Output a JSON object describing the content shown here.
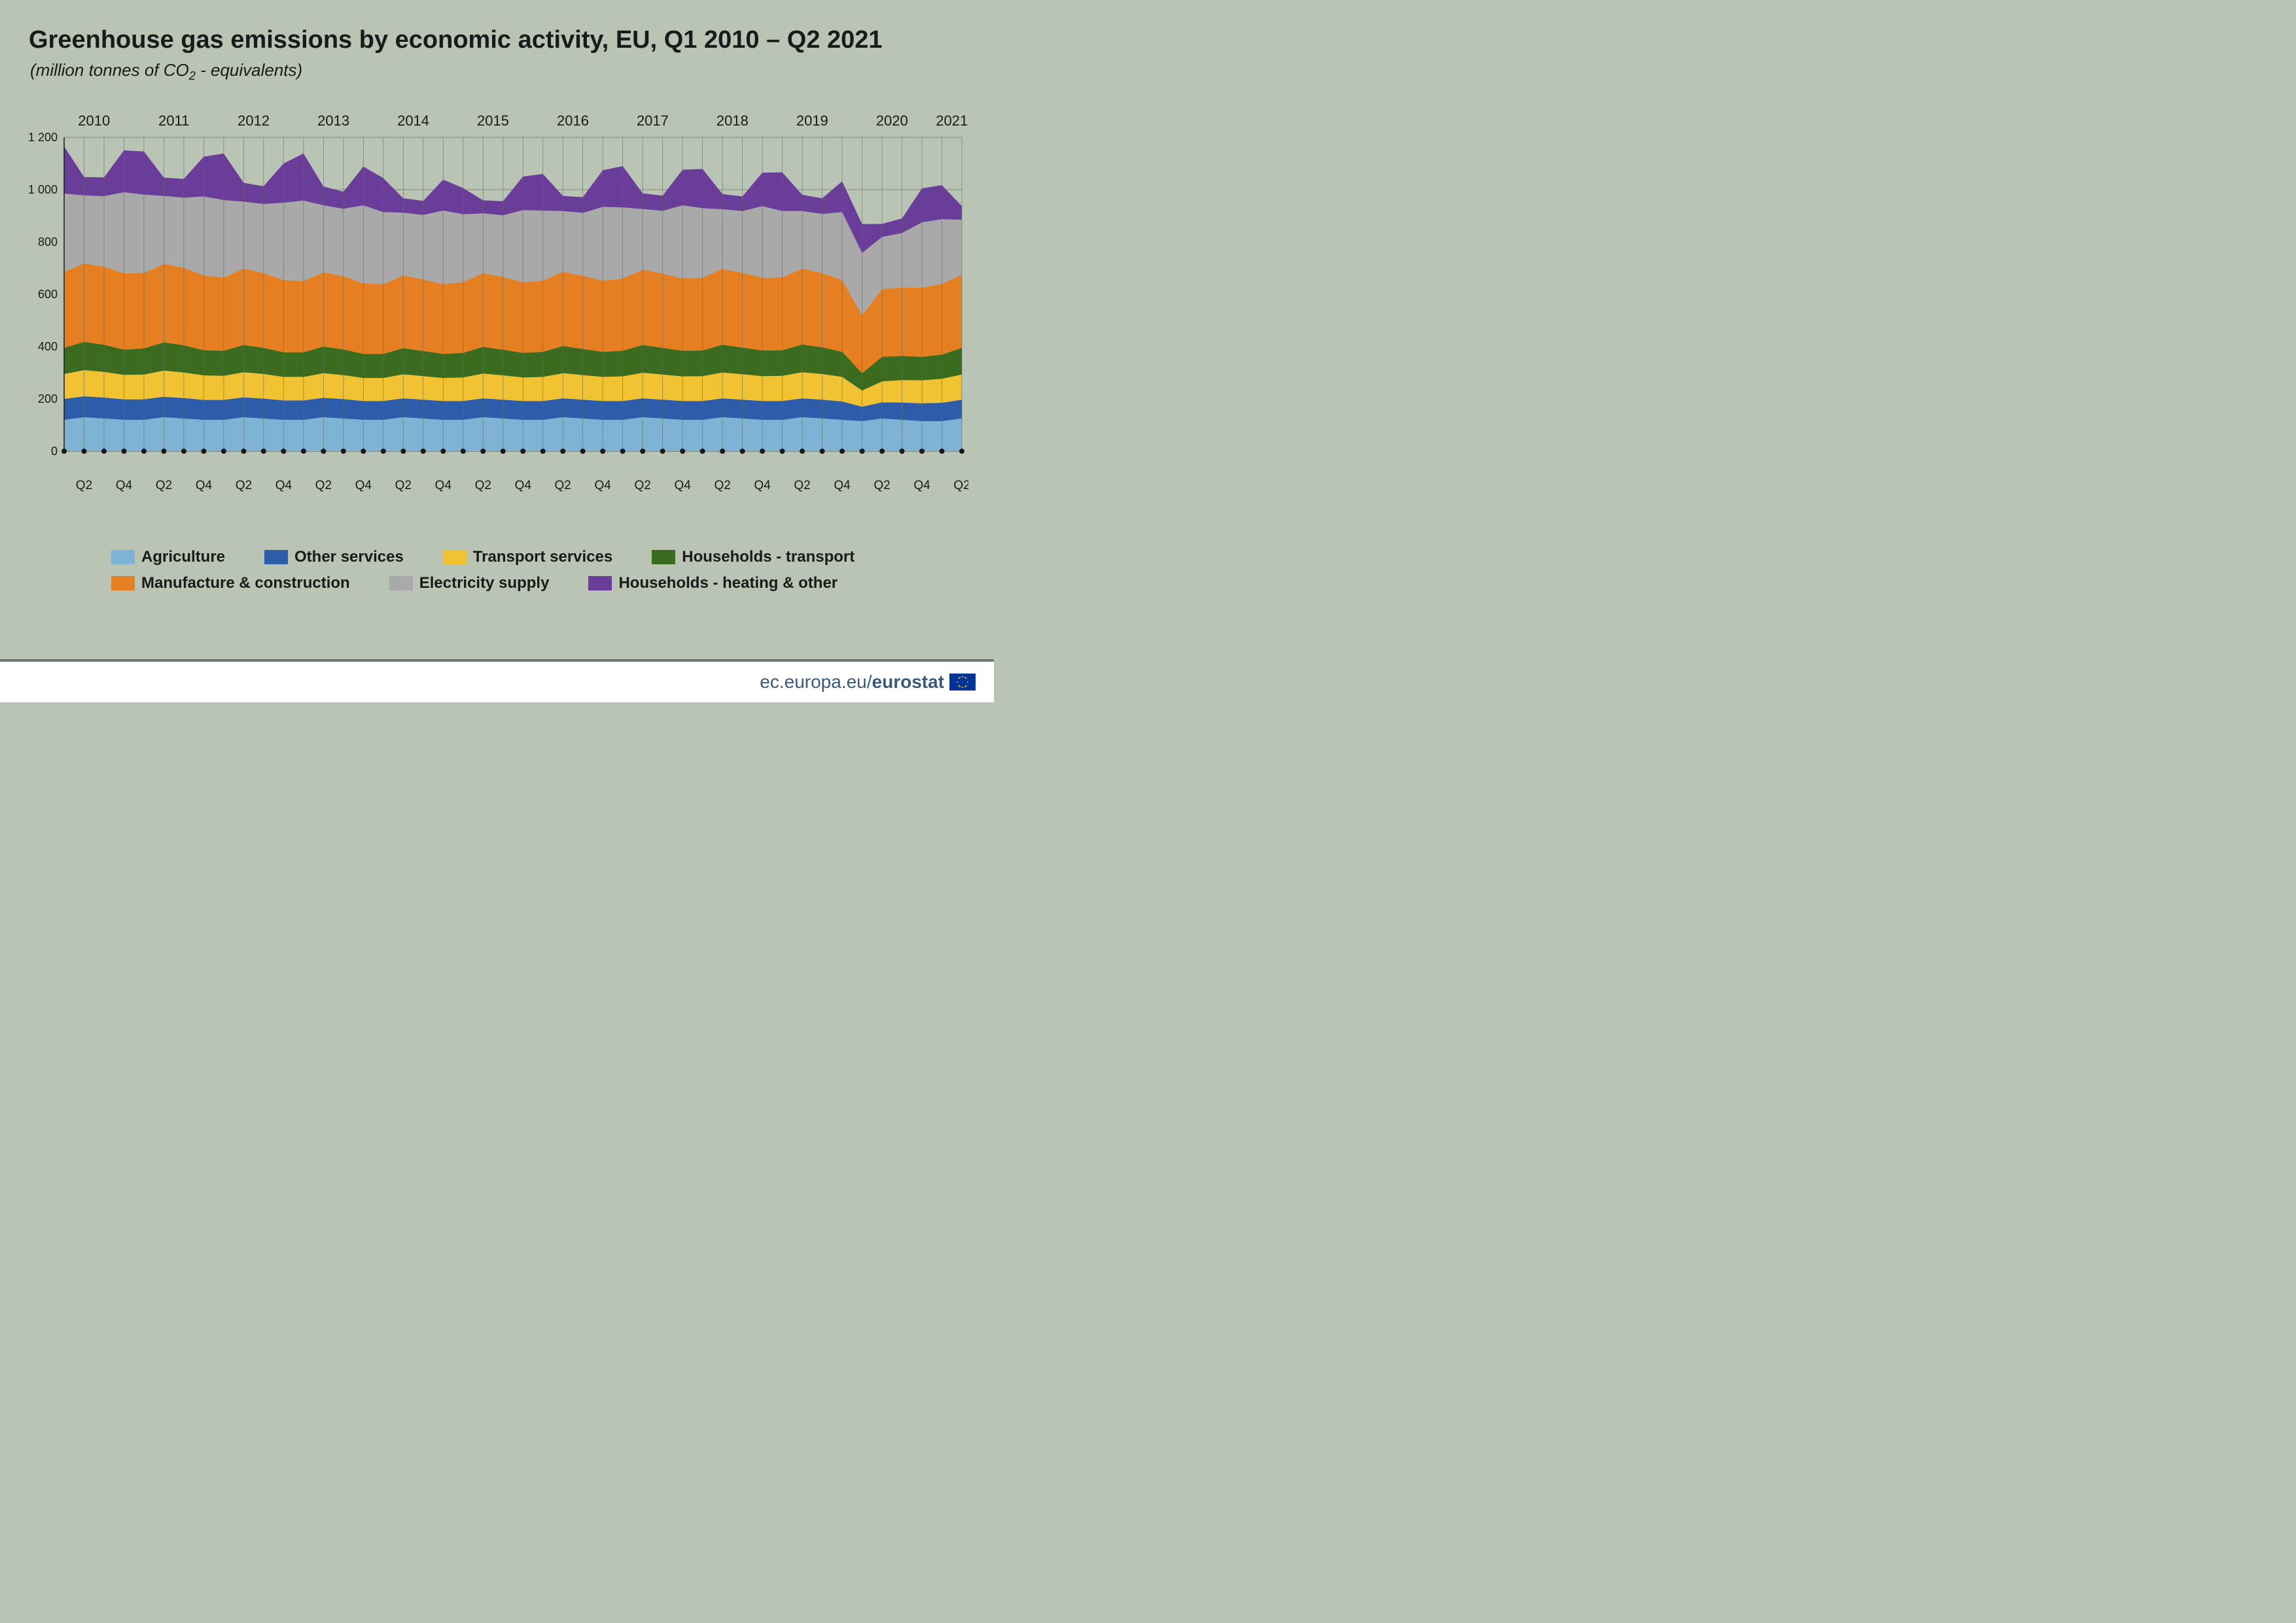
{
  "title": "Greenhouse gas emissions by economic activity, EU, Q1 2010 – Q2 2021",
  "subtitle_prefix": "(million tonnes of CO",
  "subtitle_sub": "2",
  "subtitle_suffix": " - equivalents)",
  "footer_thin": "ec.europa.eu/",
  "footer_bold": "eurostat",
  "chart": {
    "type": "stacked-area",
    "ylim": [
      0,
      1200
    ],
    "ytick_step": 200,
    "yticks": [
      "0",
      "200",
      "400",
      "600",
      "800",
      "1 000",
      "1 200"
    ],
    "years_top": [
      "2010",
      "2011",
      "2012",
      "2013",
      "2014",
      "2015",
      "2016",
      "2017",
      "2018",
      "2019",
      "2020",
      "2021"
    ],
    "x_labels_bottom": [
      "Q2",
      "Q4",
      "Q2",
      "Q4",
      "Q2",
      "Q4",
      "Q2",
      "Q4",
      "Q2",
      "Q4",
      "Q2",
      "Q4",
      "Q2",
      "Q4",
      "Q2",
      "Q4",
      "Q2",
      "Q4",
      "Q2",
      "Q4",
      "Q2",
      "Q4",
      "Q2"
    ],
    "gridline_color": "#808a80",
    "vline_color": "#606a60",
    "axis_color": "#1a1a1a",
    "background": "#b9c4b5",
    "colors": {
      "agriculture": "#7fb3d5",
      "other_services": "#2d5caa",
      "transport_services": "#f1c232",
      "households_transport": "#3a6b1e",
      "manufacture_construction": "#e67e22",
      "electricity_supply": "#a9a9a9",
      "households_heating": "#6a3d9a"
    },
    "series_order": [
      "agriculture",
      "other_services",
      "transport_services",
      "households_transport",
      "manufacture_construction",
      "electricity_supply",
      "households_heating"
    ],
    "legend": [
      {
        "key": "agriculture",
        "label": "Agriculture"
      },
      {
        "key": "other_services",
        "label": "Other services"
      },
      {
        "key": "transport_services",
        "label": "Transport services"
      },
      {
        "key": "households_transport",
        "label": "Households - transport"
      },
      {
        "key": "manufacture_construction",
        "label": "Manufacture & construction"
      },
      {
        "key": "electricity_supply",
        "label": "Electricity supply"
      },
      {
        "key": "households_heating",
        "label": "Households - heating & other"
      }
    ],
    "n_points": 46,
    "data": {
      "agriculture": [
        120,
        130,
        125,
        120,
        120,
        130,
        125,
        120,
        120,
        130,
        125,
        120,
        120,
        130,
        125,
        120,
        120,
        130,
        125,
        120,
        120,
        130,
        125,
        120,
        120,
        130,
        125,
        120,
        120,
        130,
        125,
        120,
        120,
        130,
        125,
        120,
        120,
        130,
        125,
        120,
        115,
        125,
        120,
        115,
        115,
        125
      ],
      "other_services": [
        80,
        80,
        80,
        78,
        78,
        78,
        78,
        76,
        76,
        76,
        76,
        74,
        74,
        74,
        74,
        72,
        72,
        72,
        72,
        72,
        72,
        72,
        72,
        72,
        72,
        72,
        72,
        72,
        72,
        72,
        72,
        72,
        72,
        72,
        72,
        72,
        72,
        72,
        72,
        70,
        55,
        62,
        66,
        68,
        70,
        72
      ],
      "transport_services": [
        95,
        100,
        98,
        94,
        95,
        100,
        98,
        94,
        92,
        96,
        94,
        90,
        90,
        94,
        92,
        88,
        88,
        92,
        90,
        88,
        90,
        95,
        93,
        90,
        92,
        96,
        94,
        92,
        94,
        98,
        96,
        94,
        95,
        99,
        97,
        95,
        96,
        100,
        98,
        94,
        62,
        80,
        86,
        88,
        92,
        96
      ],
      "households_transport": [
        100,
        108,
        104,
        96,
        100,
        108,
        104,
        96,
        96,
        104,
        100,
        94,
        94,
        102,
        98,
        92,
        92,
        100,
        96,
        92,
        94,
        102,
        98,
        94,
        96,
        104,
        100,
        96,
        98,
        106,
        102,
        98,
        98,
        106,
        102,
        98,
        98,
        106,
        102,
        96,
        66,
        94,
        92,
        90,
        92,
        102
      ],
      "manufacture_construction": [
        290,
        300,
        298,
        292,
        288,
        300,
        296,
        286,
        280,
        292,
        286,
        276,
        272,
        284,
        280,
        270,
        266,
        278,
        274,
        266,
        270,
        282,
        278,
        270,
        272,
        284,
        280,
        272,
        276,
        288,
        284,
        276,
        278,
        290,
        286,
        278,
        278,
        290,
        284,
        274,
        222,
        258,
        262,
        264,
        270,
        280
      ],
      "electricity_supply": [
        300,
        260,
        270,
        310,
        300,
        260,
        268,
        302,
        296,
        256,
        264,
        296,
        308,
        256,
        258,
        298,
        276,
        240,
        246,
        282,
        260,
        228,
        236,
        276,
        268,
        232,
        240,
        282,
        272,
        232,
        240,
        280,
        266,
        228,
        236,
        274,
        254,
        220,
        226,
        260,
        238,
        200,
        208,
        250,
        248,
        210
      ],
      "households_heating": [
        180,
        70,
        72,
        160,
        165,
        70,
        72,
        152,
        178,
        72,
        68,
        150,
        180,
        72,
        65,
        148,
        130,
        55,
        54,
        118,
        100,
        50,
        54,
        128,
        140,
        58,
        60,
        140,
        158,
        60,
        58,
        136,
        150,
        58,
        56,
        128,
        148,
        62,
        60,
        118,
        110,
        50,
        56,
        130,
        130,
        52
      ]
    }
  }
}
